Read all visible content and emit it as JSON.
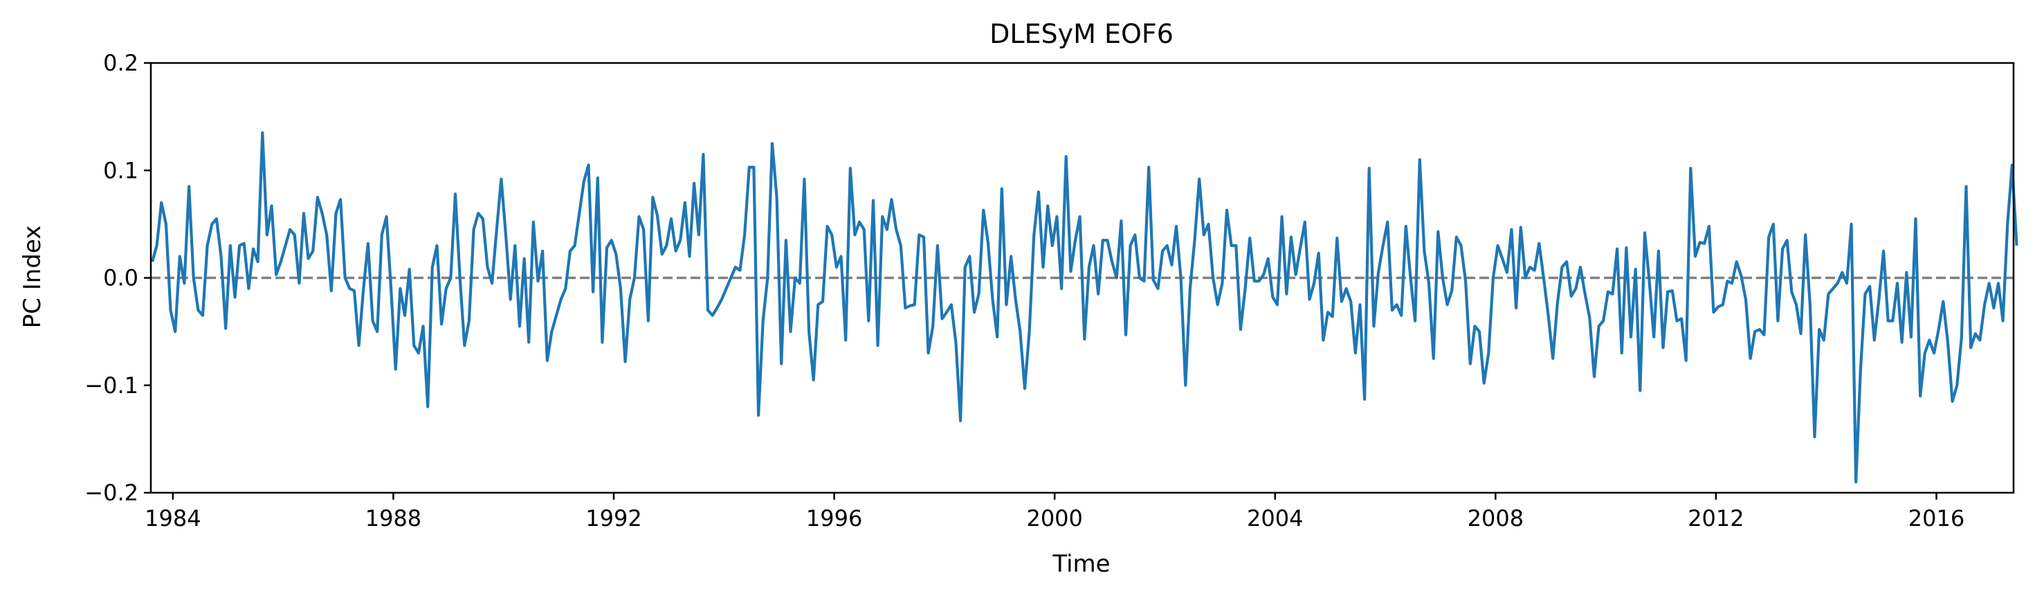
{
  "chart_data": {
    "type": "line",
    "title": "DLESyM  EOF6",
    "xlabel": "Time",
    "ylabel": "PC Index",
    "xlim": [
      1983.6,
      2017.4
    ],
    "ylim": [
      -0.2,
      0.2
    ],
    "x_ticks": [
      1984,
      1988,
      1992,
      1996,
      2000,
      2004,
      2008,
      2012,
      2016
    ],
    "x_tick_labels": [
      "1984",
      "1988",
      "1992",
      "1996",
      "2000",
      "2004",
      "2008",
      "2012",
      "2016"
    ],
    "y_ticks": [
      -0.2,
      -0.1,
      0.0,
      0.1,
      0.2
    ],
    "y_tick_labels": [
      "−0.2",
      "−0.1",
      "0.0",
      "0.1",
      "0.2"
    ],
    "reference_line": {
      "y": 0.0,
      "style": "dashed",
      "color": "#808080"
    },
    "grid": false,
    "series": [
      {
        "color": "#1f77b4",
        "x_start": 1983.625,
        "x_step": 0.08333,
        "values": [
          0.015,
          0.03,
          0.07,
          0.05,
          -0.03,
          -0.05,
          0.02,
          -0.005,
          0.085,
          0.0,
          -0.03,
          -0.035,
          0.03,
          0.05,
          0.055,
          0.02,
          -0.047,
          0.03,
          -0.018,
          0.03,
          0.032,
          -0.01,
          0.027,
          0.015,
          0.135,
          0.04,
          0.067,
          0.003,
          0.015,
          0.03,
          0.045,
          0.04,
          -0.005,
          0.06,
          0.018,
          0.025,
          0.075,
          0.06,
          0.04,
          -0.012,
          0.06,
          0.073,
          0.0,
          -0.01,
          -0.012,
          -0.063,
          -0.01,
          0.032,
          -0.04,
          -0.05,
          0.04,
          0.057,
          -0.01,
          -0.085,
          -0.01,
          -0.035,
          0.008,
          -0.063,
          -0.07,
          -0.045,
          -0.12,
          0.01,
          0.03,
          -0.043,
          -0.01,
          0.0,
          0.078,
          0.0,
          -0.063,
          -0.04,
          0.045,
          0.06,
          0.055,
          0.01,
          -0.005,
          0.045,
          0.092,
          0.04,
          -0.02,
          0.03,
          -0.045,
          0.018,
          -0.06,
          0.052,
          -0.003,
          0.025,
          -0.077,
          -0.05,
          -0.035,
          -0.02,
          -0.01,
          0.025,
          0.03,
          0.06,
          0.09,
          0.105,
          -0.013,
          0.093,
          -0.06,
          0.028,
          0.035,
          0.022,
          -0.01,
          -0.078,
          -0.02,
          0.0,
          0.057,
          0.045,
          -0.04,
          0.075,
          0.058,
          0.022,
          0.03,
          0.055,
          0.025,
          0.035,
          0.07,
          0.02,
          0.088,
          0.04,
          0.115,
          -0.03,
          -0.035,
          -0.028,
          -0.02,
          -0.01,
          0.0,
          0.01,
          0.007,
          0.04,
          0.103,
          0.103,
          -0.128,
          -0.04,
          0.0,
          0.125,
          0.075,
          -0.08,
          0.035,
          -0.05,
          0.0,
          -0.005,
          0.092,
          -0.05,
          -0.095,
          -0.025,
          -0.022,
          0.048,
          0.04,
          0.01,
          0.02,
          -0.058,
          0.102,
          0.04,
          0.052,
          0.045,
          -0.04,
          0.072,
          -0.063,
          0.057,
          0.045,
          0.073,
          0.045,
          0.03,
          -0.028,
          -0.026,
          -0.025,
          0.04,
          0.038,
          -0.07,
          -0.045,
          0.03,
          -0.038,
          -0.032,
          -0.025,
          -0.06,
          -0.133,
          0.01,
          0.02,
          -0.032,
          -0.015,
          0.063,
          0.033,
          -0.02,
          -0.055,
          0.083,
          -0.025,
          0.02,
          -0.02,
          -0.05,
          -0.103,
          -0.05,
          0.04,
          0.08,
          0.01,
          0.067,
          0.03,
          0.057,
          -0.01,
          0.113,
          0.006,
          0.035,
          0.057,
          -0.057,
          0.01,
          0.03,
          -0.015,
          0.035,
          0.035,
          0.015,
          0.0,
          0.053,
          -0.053,
          0.03,
          0.04,
          0.0,
          -0.003,
          0.103,
          -0.002,
          -0.01,
          0.025,
          0.03,
          0.012,
          0.048,
          0.0,
          -0.1,
          -0.01,
          0.035,
          0.092,
          0.04,
          0.05,
          0.0,
          -0.025,
          -0.005,
          0.063,
          0.03,
          0.03,
          -0.048,
          -0.01,
          0.037,
          -0.003,
          -0.003,
          0.003,
          0.018,
          -0.018,
          -0.025,
          0.057,
          -0.015,
          0.038,
          0.003,
          0.028,
          0.052,
          -0.02,
          -0.005,
          0.023,
          -0.058,
          -0.032,
          -0.036,
          0.037,
          -0.022,
          -0.01,
          -0.022,
          -0.07,
          -0.025,
          -0.113,
          0.102,
          -0.045,
          0.005,
          0.03,
          0.052,
          -0.03,
          -0.025,
          -0.035,
          0.048,
          0.0,
          -0.04,
          0.11,
          0.025,
          -0.005,
          -0.075,
          0.043,
          0.0,
          -0.025,
          -0.012,
          0.038,
          0.03,
          -0.003,
          -0.08,
          -0.045,
          -0.05,
          -0.098,
          -0.07,
          0.0,
          0.03,
          0.018,
          0.005,
          0.045,
          -0.028,
          0.047,
          0.0,
          0.01,
          0.007,
          0.032,
          0.0,
          -0.035,
          -0.075,
          -0.023,
          0.01,
          0.015,
          -0.017,
          -0.01,
          0.01,
          -0.015,
          -0.037,
          -0.092,
          -0.045,
          -0.04,
          -0.013,
          -0.015,
          0.027,
          -0.07,
          0.028,
          -0.055,
          0.008,
          -0.105,
          0.042,
          -0.003,
          -0.055,
          0.025,
          -0.065,
          -0.013,
          -0.012,
          -0.04,
          -0.038,
          -0.077,
          0.102,
          0.02,
          0.033,
          0.032,
          0.048,
          -0.032,
          -0.027,
          -0.025,
          -0.003,
          -0.005,
          0.015,
          0.002,
          -0.02,
          -0.075,
          -0.05,
          -0.048,
          -0.053,
          0.038,
          0.05,
          -0.04,
          0.027,
          0.035,
          -0.013,
          -0.025,
          -0.052,
          0.04,
          -0.025,
          -0.148,
          -0.048,
          -0.058,
          -0.015,
          -0.01,
          -0.005,
          0.005,
          -0.005,
          0.05,
          -0.19,
          -0.085,
          -0.015,
          -0.008,
          -0.058,
          -0.02,
          0.025,
          -0.04,
          -0.04,
          -0.005,
          -0.06,
          0.005,
          -0.055,
          0.055,
          -0.11,
          -0.07,
          -0.058,
          -0.07,
          -0.048,
          -0.022,
          -0.06,
          -0.115,
          -0.1,
          -0.055,
          0.085,
          -0.065,
          -0.052,
          -0.058,
          -0.025,
          -0.005,
          -0.028,
          -0.005,
          -0.04,
          0.05,
          0.105,
          0.03
        ]
      }
    ]
  }
}
